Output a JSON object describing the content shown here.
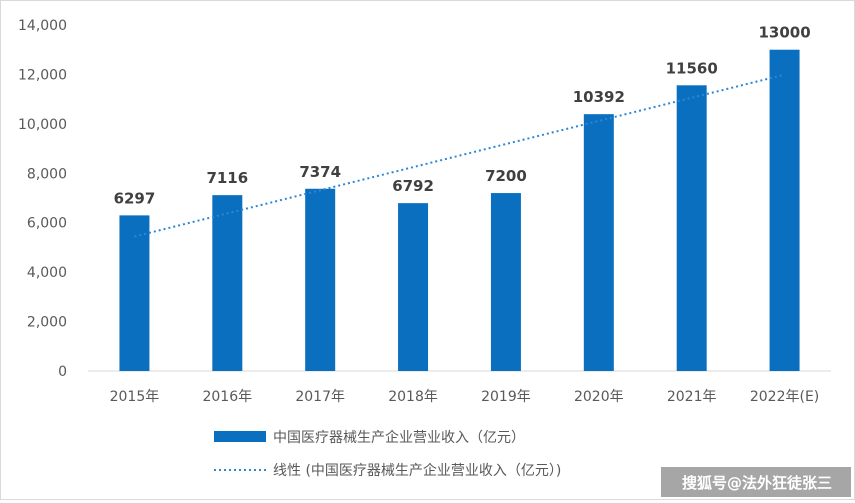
{
  "chart_data": {
    "type": "bar",
    "categories": [
      "2015年",
      "2016年",
      "2017年",
      "2018年",
      "2019年",
      "2020年",
      "2021年",
      "2022年(E)"
    ],
    "series": [
      {
        "name": "中国医疗器械生产企业营业收入（亿元）",
        "values": [
          6297,
          7116,
          7374,
          6792,
          7200,
          10392,
          11560,
          13000
        ],
        "color": "#0b6fc0"
      }
    ],
    "data_labels": [
      "6297",
      "7116",
      "7374",
      "6792",
      "7200",
      "10392",
      "11560",
      "13000"
    ],
    "trendline": {
      "name": "线性 (中国医疗器械生产企业营业收入（亿元）)",
      "type": "linear",
      "style": "dotted",
      "color": "#2e86d6"
    },
    "ylim": [
      0,
      14000
    ],
    "yticks": [
      0,
      2000,
      4000,
      6000,
      8000,
      10000,
      12000,
      14000
    ],
    "ytick_labels": [
      "0",
      "2,000",
      "4,000",
      "6,000",
      "8,000",
      "10,000",
      "12,000",
      "14,000"
    ],
    "grid": false,
    "legend_position": "bottom"
  },
  "watermark": "搜狐号@法外狂徒张三"
}
